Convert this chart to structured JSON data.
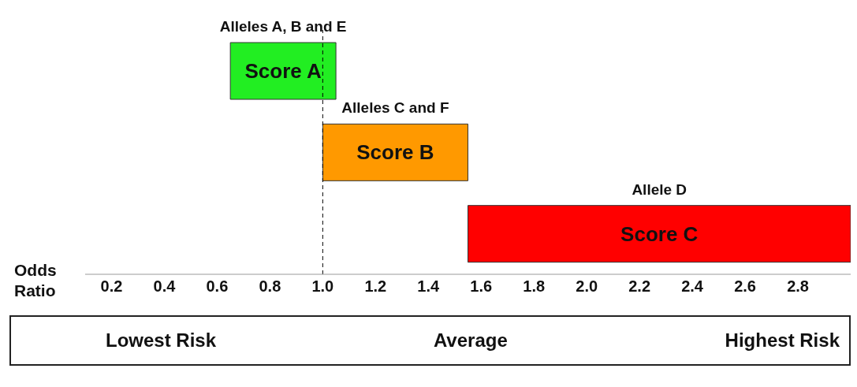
{
  "chart_data": {
    "type": "bar",
    "orientation": "horizontal",
    "categories": [
      "Score A",
      "Score B",
      "Score C"
    ],
    "base": [
      0.65,
      1.0,
      1.55
    ],
    "values": [
      0.4,
      0.55,
      1.45
    ],
    "colors": [
      "#22ee22",
      "#ff9900",
      "#ff0000"
    ],
    "xlabel": "Odds Ratio",
    "xlim": [
      0.1,
      3.0
    ],
    "xticks": [
      0.2,
      0.4,
      0.6,
      0.8,
      {
        "value": 1,
        "label": "1.0"
      },
      1.2,
      1.4,
      1.6,
      1.8,
      {
        "value": 2,
        "label": "2.0"
      },
      2.2,
      2.4,
      2.6,
      2.8
    ],
    "tick_labels": "x",
    "ref_lines": [
      {
        "axis": "x",
        "value": 1.0,
        "line_style": "dashed",
        "color": "#000000"
      }
    ],
    "annotations": [
      "Alleles A, B and E",
      "Alleles C and F",
      "Allele D",
      "Lowest Risk",
      "Average",
      "Highest Risk"
    ],
    "grid": false,
    "legend": false
  }
}
